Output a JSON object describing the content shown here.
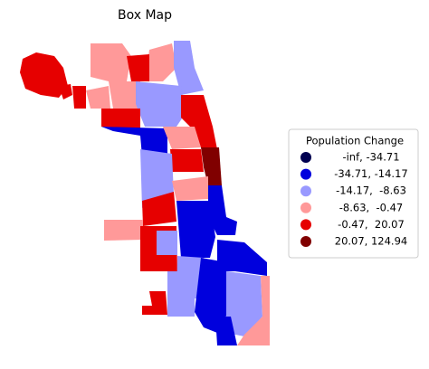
{
  "title": "Box Map",
  "legend": {
    "title": "Population Change",
    "entries": [
      {
        "label": "-inf, -34.71",
        "color": "#000050"
      },
      {
        "label": "-34.71, -14.17",
        "color": "#0000dd"
      },
      {
        "label": "-14.17,  -8.63",
        "color": "#9999ff"
      },
      {
        "label": "-8.63,  -0.47",
        "color": "#ff9999"
      },
      {
        "label": "-0.47,  20.07",
        "color": "#e60000"
      },
      {
        "label": "20.07, 124.94",
        "color": "#800000"
      }
    ]
  }
}
